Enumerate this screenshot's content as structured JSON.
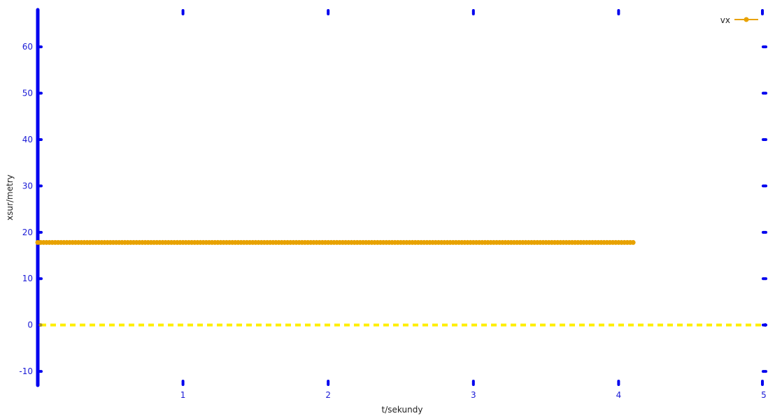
{
  "chart_data": {
    "type": "line",
    "xlabel": "t/sekundy",
    "ylabel": "xsur/metry",
    "xlim": [
      0,
      5
    ],
    "ylim": [
      -13,
      68
    ],
    "x_ticks": [
      1,
      2,
      3,
      4,
      5
    ],
    "y_ticks": [
      -10,
      0,
      10,
      20,
      30,
      40,
      50,
      60
    ],
    "grid": false,
    "legend_position": "top-right",
    "series": [
      {
        "name": "vx",
        "color": "#e8a200",
        "style": "solid-markers",
        "x_start": 0,
        "x_end": 4.1,
        "x_step": 0.02,
        "y": 17.8
      }
    ],
    "reference_lines": [
      {
        "color": "#ffee00",
        "style": "dashed",
        "x_start": 0,
        "x_end": 5,
        "y": 0
      }
    ],
    "colors": {
      "axis": "#0000ee",
      "tick_label": "#1a1ad6"
    }
  }
}
